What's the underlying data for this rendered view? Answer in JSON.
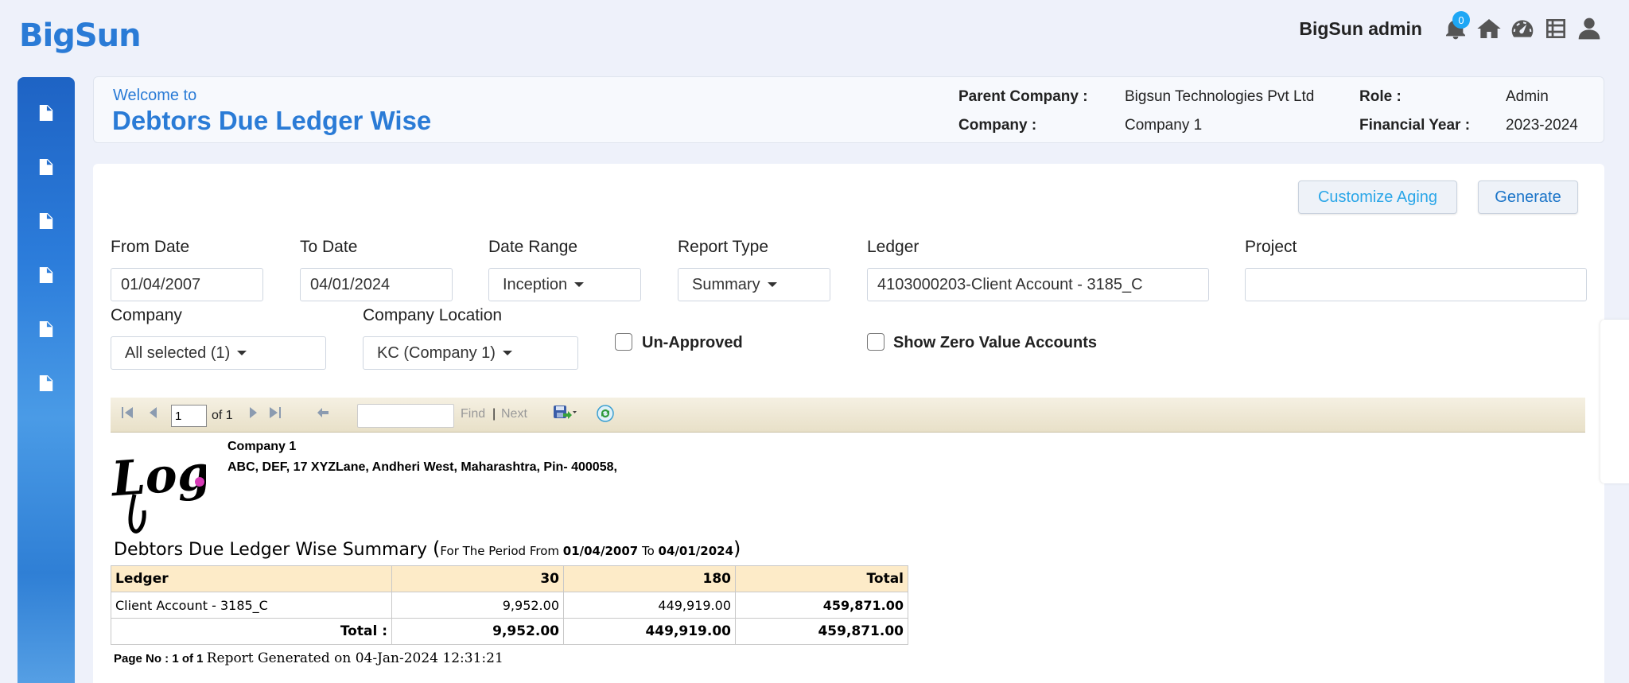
{
  "brand": "BigSun",
  "topbar": {
    "user_name": "BigSun admin",
    "notification_count": "0",
    "icons": [
      "bell-icon",
      "home-icon",
      "dashboard-icon",
      "list-icon",
      "user-icon"
    ]
  },
  "sidebar": {
    "items": [
      "document-icon",
      "document-icon",
      "document-icon",
      "document-icon",
      "document-icon",
      "document-icon"
    ]
  },
  "header": {
    "welcome": "Welcome to",
    "title": "Debtors Due Ledger Wise",
    "parent_company_label": "Parent Company :",
    "parent_company_value": "Bigsun Technologies Pvt Ltd",
    "company_label": "Company :",
    "company_value": "Company 1",
    "role_label": "Role :",
    "role_value": "Admin",
    "fy_label": "Financial Year :",
    "fy_value": "2023-2024"
  },
  "actions": {
    "customize_aging": "Customize Aging",
    "generate": "Generate"
  },
  "filters": {
    "from_date_label": "From Date",
    "from_date_value": "01/04/2007",
    "to_date_label": "To Date",
    "to_date_value": "04/01/2024",
    "date_range_label": "Date Range",
    "date_range_value": "Inception",
    "report_type_label": "Report Type",
    "report_type_value": "Summary",
    "ledger_label": "Ledger",
    "ledger_value": "4103000203-Client Account - 3185_C",
    "project_label": "Project",
    "project_value": "",
    "company_label": "Company",
    "company_value": "All selected (1)",
    "company_location_label": "Company Location",
    "company_location_value": "KC (Company 1)",
    "unapproved_label": "Un-Approved",
    "zero_value_label": "Show Zero Value Accounts"
  },
  "report_toolbar": {
    "page_value": "1",
    "of_text": "of 1",
    "find": "Find",
    "separator": "|",
    "next": "Next"
  },
  "report": {
    "logo_text": "Logo",
    "company_name": "Company 1",
    "company_address": "ABC, DEF, 17 XYZLane, Andheri West, Maharashtra, Pin- 400058,",
    "title": "Debtors Due Ledger Wise Summary",
    "period_open": "(",
    "period_prefix": "For The Period From ",
    "period_from": "01/04/2007",
    "period_to_word": " To ",
    "period_to": "04/01/2024",
    "period_close": ")",
    "columns": [
      "Ledger",
      "30",
      "180",
      "Total"
    ],
    "rows": [
      [
        "Client Account - 3185_C",
        "9,952.00",
        "449,919.00",
        "459,871.00"
      ]
    ],
    "total_label": "Total :",
    "totals": [
      "9,952.00",
      "449,919.00",
      "459,871.00"
    ],
    "page_no_label": "Page No : 1 of 1",
    "generated_text": "Report Generated on 04-Jan-2024 12:31:21"
  }
}
